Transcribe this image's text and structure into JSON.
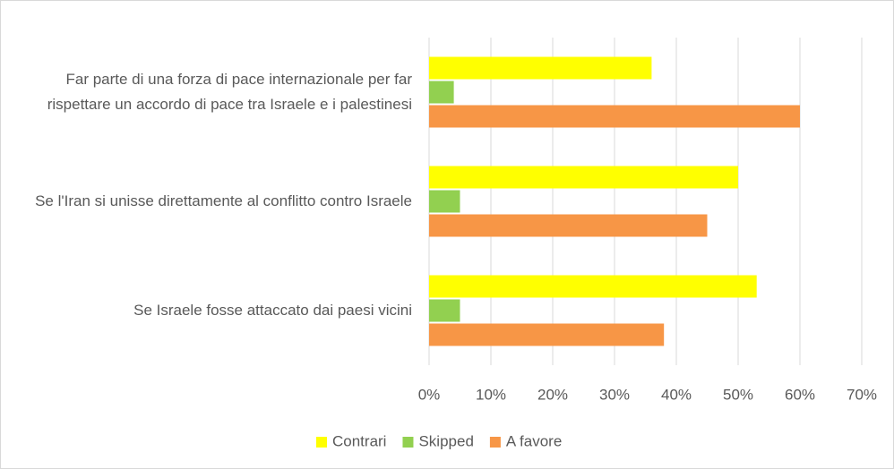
{
  "chart_data": {
    "type": "hbar",
    "categories": [
      "Far parte di una forza di pace internazionale per far rispettare un accordo di pace tra Israele e i palestinesi",
      "Se l'Iran si unisse direttamente al conflitto contro Israele",
      "Se Israele fosse attaccato dai paesi vicini"
    ],
    "series": [
      {
        "name": "Contrari",
        "color": "#ffff00",
        "values": [
          36,
          50,
          53
        ]
      },
      {
        "name": "Skipped",
        "color": "#92d050",
        "values": [
          4,
          5,
          5
        ]
      },
      {
        "name": "A favore",
        "color": "#f79646",
        "values": [
          60,
          45,
          38
        ]
      }
    ],
    "xlim": [
      0,
      70
    ],
    "xticks": [
      {
        "value": 0,
        "label": "0%"
      },
      {
        "value": 10,
        "label": "10%"
      },
      {
        "value": 20,
        "label": "20%"
      },
      {
        "value": 30,
        "label": "30%"
      },
      {
        "value": 40,
        "label": "40%"
      },
      {
        "value": 50,
        "label": "50%"
      },
      {
        "value": 60,
        "label": "60%"
      },
      {
        "value": 70,
        "label": "70%"
      }
    ],
    "grid": true,
    "legend": "bottom"
  }
}
